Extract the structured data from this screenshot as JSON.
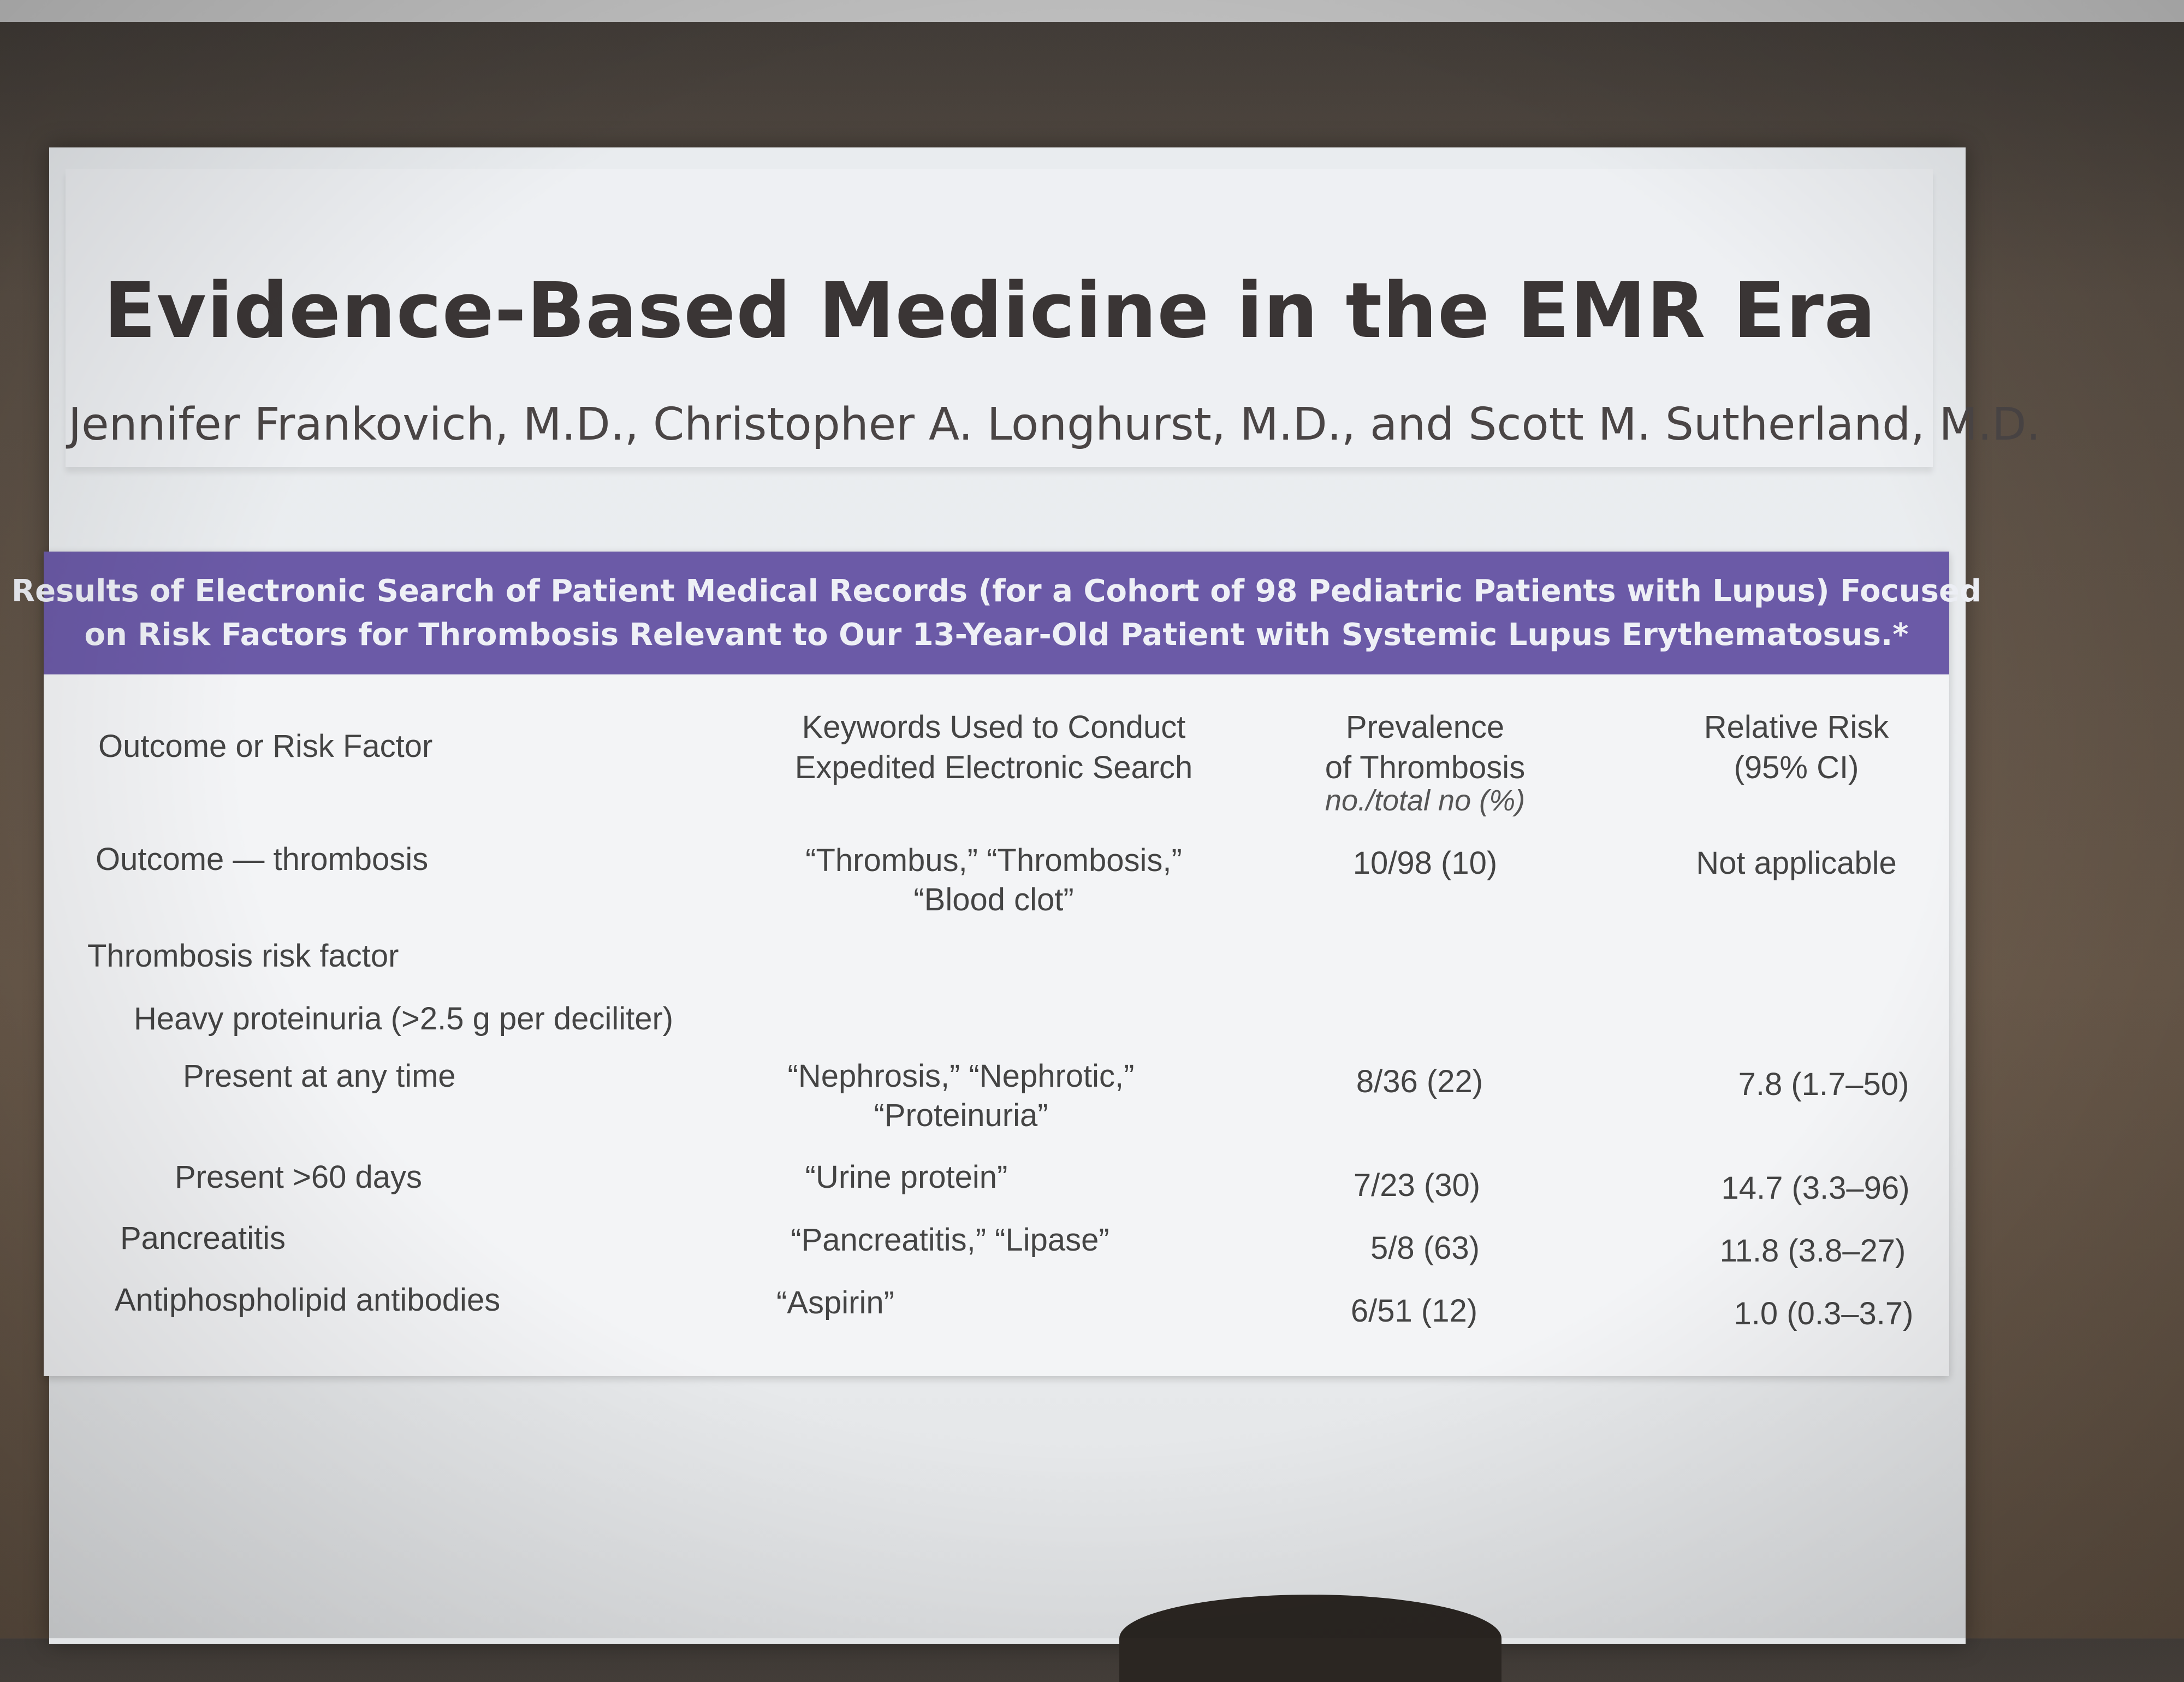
{
  "slide": {
    "title": "Evidence-Based Medicine in the EMR Era",
    "authors": "Jennifer Frankovich, M.D., Christopher A. Longhurst, M.D., and Scott M. Sutherland, M.D."
  },
  "table": {
    "caption": [
      "Results of Electronic Search of Patient Medical Records (for a Cohort of 98 Pediatric Patients with Lupus) Focused",
      "on Risk Factors for Thrombosis Relevant to Our 13-Year-Old Patient with Systemic Lupus Erythematosus.*"
    ],
    "headers": {
      "factor": "Outcome or Risk Factor",
      "keywords": [
        "Keywords Used to Conduct",
        "Expedited Electronic Search"
      ],
      "prevalence": [
        "Prevalence",
        "of Thrombosis"
      ],
      "risk": [
        "Relative Risk",
        "(95% CI)"
      ],
      "units": "no./total no (%)"
    },
    "rows": [
      {
        "factor": "Outcome — thrombosis",
        "keywords": [
          "“Thrombus,” “Thrombosis,”",
          "“Blood clot”"
        ],
        "prevalence": "10/98 (10)",
        "risk": "Not applicable"
      },
      {
        "factor": "Thrombosis risk factor",
        "keywords": [],
        "prevalence": "",
        "risk": ""
      },
      {
        "factor": "Heavy proteinuria (>2.5 g per deciliter)",
        "keywords": [],
        "prevalence": "",
        "risk": ""
      },
      {
        "factor": "Present at any time",
        "keywords": [
          "“Nephrosis,” “Nephrotic,”",
          "“Proteinuria”"
        ],
        "prevalence": "8/36 (22)",
        "risk": "7.8 (1.7–50)"
      },
      {
        "factor": "Present >60 days",
        "keywords": [
          "“Urine protein”"
        ],
        "prevalence": "7/23 (30)",
        "risk": "14.7 (3.3–96)"
      },
      {
        "factor": "Pancreatitis",
        "keywords": [
          "“Pancreatitis,” “Lipase”"
        ],
        "prevalence": "5/8 (63)",
        "risk": "11.8 (3.8–27)"
      },
      {
        "factor": "Antiphospholipid antibodies",
        "keywords": [
          "“Aspirin”"
        ],
        "prevalence": "6/51 (12)",
        "risk": "1.0 (0.3–3.7)"
      }
    ]
  },
  "colors": {
    "caption_bar": "#6b5aa7",
    "caption_text": "#eef0f6",
    "slide_bg": "#eceef0",
    "text": "#444444"
  }
}
